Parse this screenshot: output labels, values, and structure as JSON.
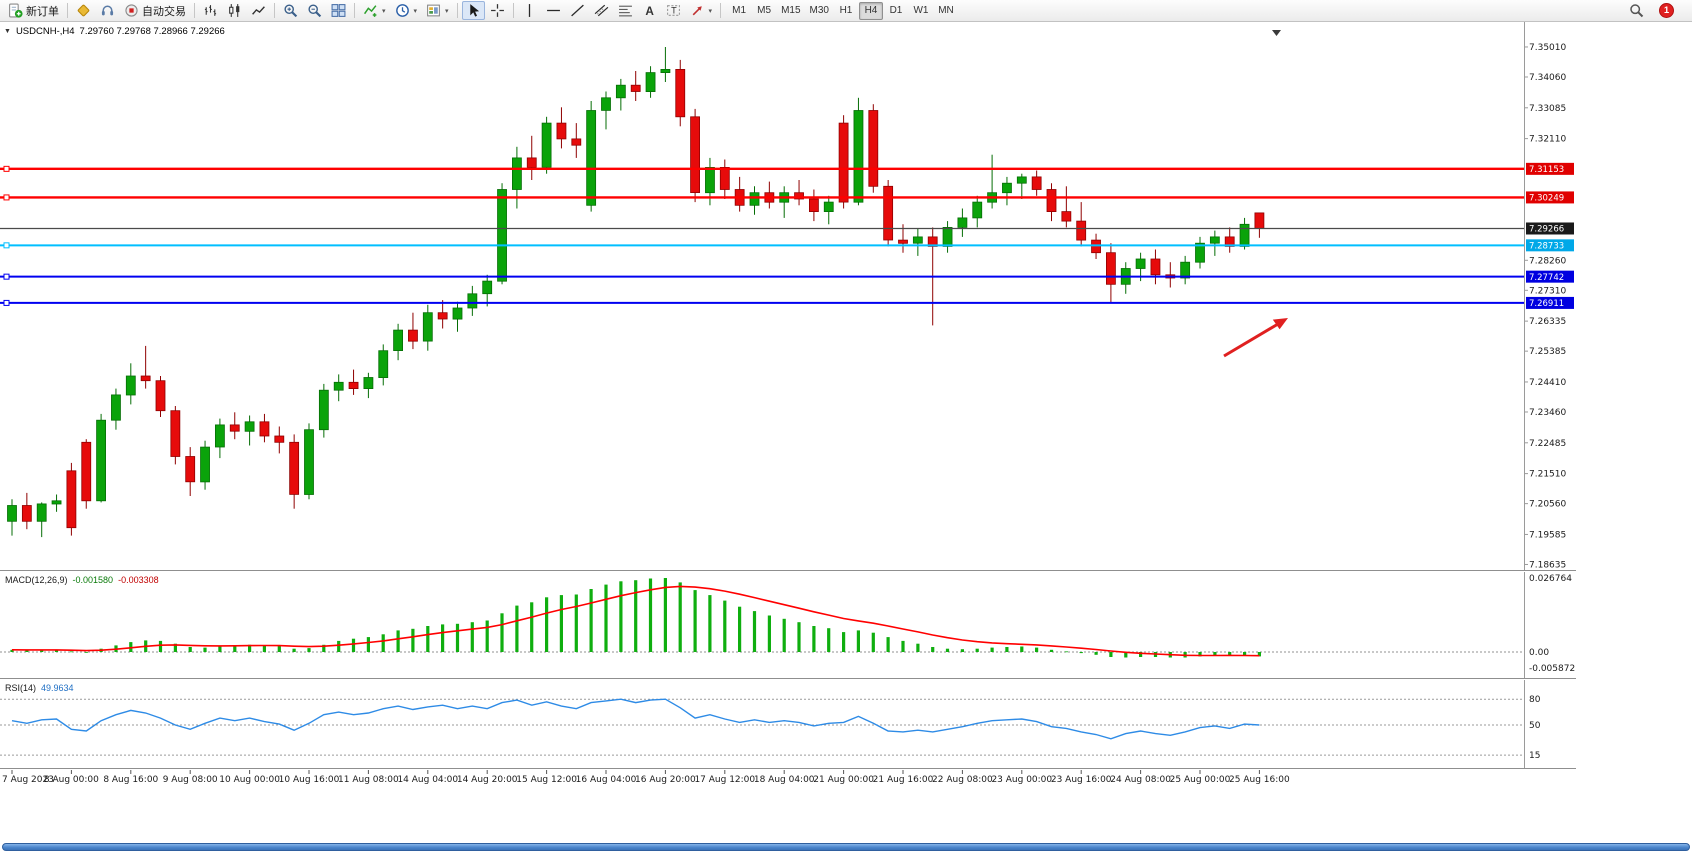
{
  "icons": {
    "caret": "▾",
    "chart_menu": "▼"
  },
  "toolbar": {
    "new_order_label": "新订单",
    "auto_trading_label": "自动交易",
    "timeframes": [
      "M1",
      "M5",
      "M15",
      "M30",
      "H1",
      "H4",
      "D1",
      "W1",
      "MN"
    ],
    "active_timeframe": "H4",
    "badge": "1"
  },
  "chart_data": {
    "type": "candlestick",
    "title": "USDCNH-,H4",
    "ohlc_display": "7.29760 7.29768 7.28966 7.29266",
    "colors": {
      "up": "#0aa30a",
      "up_stroke": "#056d05",
      "down": "#e60b0b",
      "down_stroke": "#8f0000"
    },
    "price_ticks": [
      "7.35010",
      "7.34060",
      "7.33085",
      "7.32110",
      "7.28260",
      "7.27310",
      "7.26335",
      "7.25385",
      "7.24410",
      "7.23460",
      "7.22485",
      "7.21510",
      "7.20560",
      "7.19585",
      "7.18635"
    ],
    "x_labels": [
      "7 Aug 2023",
      "8 Aug 00:00",
      "8 Aug 16:00",
      "9 Aug 08:00",
      "10 Aug 00:00",
      "10 Aug 16:00",
      "11 Aug 08:00",
      "14 Aug 04:00",
      "14 Aug 20:00",
      "15 Aug 12:00",
      "16 Aug 04:00",
      "16 Aug 20:00",
      "17 Aug 12:00",
      "18 Aug 04:00",
      "21 Aug 00:00",
      "21 Aug 16:00",
      "22 Aug 08:00",
      "23 Aug 00:00",
      "23 Aug 16:00",
      "24 Aug 08:00",
      "25 Aug 00:00",
      "25 Aug 16:00"
    ],
    "hlines": [
      {
        "price": 7.31153,
        "label": "7.31153",
        "color": "#ff0000",
        "width": 2.4,
        "tag": "#e00000",
        "handles": true
      },
      {
        "price": 7.30249,
        "label": "7.30249",
        "color": "#ff0000",
        "width": 2.4,
        "tag": "#e00000",
        "handles": true
      },
      {
        "price": 7.29266,
        "label": "7.29266",
        "color": "#4a4a4a",
        "width": 1.2,
        "tag": "#1a1a1a",
        "handles": false
      },
      {
        "price": 7.28733,
        "label": "7.28733",
        "color": "#00bfff",
        "width": 2,
        "tag": "#00a8e8",
        "handles": true
      },
      {
        "price": 7.27742,
        "label": "7.27742",
        "color": "#0000f0",
        "width": 2,
        "tag": "#0000e0",
        "handles": true
      },
      {
        "price": 7.26911,
        "label": "7.26911",
        "color": "#0000f0",
        "width": 2,
        "tag": "#0000e0",
        "handles": true
      }
    ],
    "candles": [
      [
        7.2,
        7.207,
        7.1955,
        7.205
      ],
      [
        7.205,
        7.209,
        7.1975,
        7.2
      ],
      [
        7.2,
        7.206,
        7.195,
        7.2055
      ],
      [
        7.2055,
        7.2085,
        7.203,
        7.2065
      ],
      [
        7.216,
        7.2185,
        7.1955,
        7.198
      ],
      [
        7.225,
        7.226,
        7.204,
        7.2065
      ],
      [
        7.2065,
        7.234,
        7.206,
        7.232
      ],
      [
        7.232,
        7.242,
        7.229,
        7.24
      ],
      [
        7.24,
        7.25,
        7.237,
        7.246
      ],
      [
        7.246,
        7.2555,
        7.242,
        7.2445
      ],
      [
        7.2445,
        7.246,
        7.233,
        7.235
      ],
      [
        7.235,
        7.2365,
        7.218,
        7.2205
      ],
      [
        7.2205,
        7.2235,
        7.208,
        7.2125
      ],
      [
        7.2125,
        7.2255,
        7.21,
        7.2235
      ],
      [
        7.2235,
        7.2325,
        7.22,
        7.2305
      ],
      [
        7.2305,
        7.2345,
        7.226,
        7.2285
      ],
      [
        7.2285,
        7.2335,
        7.224,
        7.2315
      ],
      [
        7.2315,
        7.234,
        7.225,
        7.227
      ],
      [
        7.227,
        7.23,
        7.2215,
        7.225
      ],
      [
        7.225,
        7.2275,
        7.204,
        7.2085
      ],
      [
        7.2085,
        7.231,
        7.207,
        7.229
      ],
      [
        7.229,
        7.2435,
        7.2265,
        7.2415
      ],
      [
        7.2415,
        7.2465,
        7.238,
        7.244
      ],
      [
        7.244,
        7.248,
        7.24,
        7.242
      ],
      [
        7.242,
        7.247,
        7.239,
        7.2455
      ],
      [
        7.2455,
        7.256,
        7.243,
        7.254
      ],
      [
        7.254,
        7.2625,
        7.251,
        7.2605
      ],
      [
        7.2605,
        7.266,
        7.2545,
        7.257
      ],
      [
        7.257,
        7.2685,
        7.254,
        7.266
      ],
      [
        7.266,
        7.27,
        7.261,
        7.264
      ],
      [
        7.264,
        7.2695,
        7.26,
        7.2675
      ],
      [
        7.2675,
        7.2745,
        7.265,
        7.272
      ],
      [
        7.272,
        7.278,
        7.268,
        7.276
      ],
      [
        7.276,
        7.307,
        7.275,
        7.305
      ],
      [
        7.305,
        7.3185,
        7.299,
        7.315
      ],
      [
        7.315,
        7.322,
        7.308,
        7.312
      ],
      [
        7.312,
        7.328,
        7.31,
        7.326
      ],
      [
        7.326,
        7.331,
        7.318,
        7.321
      ],
      [
        7.321,
        7.326,
        7.315,
        7.319
      ],
      [
        7.3,
        7.333,
        7.298,
        7.33
      ],
      [
        7.33,
        7.336,
        7.324,
        7.334
      ],
      [
        7.334,
        7.34,
        7.33,
        7.338
      ],
      [
        7.338,
        7.3425,
        7.333,
        7.336
      ],
      [
        7.336,
        7.344,
        7.334,
        7.342
      ],
      [
        7.342,
        7.3501,
        7.339,
        7.343
      ],
      [
        7.343,
        7.346,
        7.325,
        7.328
      ],
      [
        7.328,
        7.3305,
        7.301,
        7.304
      ],
      [
        7.304,
        7.315,
        7.3,
        7.312
      ],
      [
        7.312,
        7.3145,
        7.302,
        7.305
      ],
      [
        7.305,
        7.309,
        7.298,
        7.3
      ],
      [
        7.3,
        7.306,
        7.297,
        7.304
      ],
      [
        7.304,
        7.3075,
        7.299,
        7.301
      ],
      [
        7.301,
        7.306,
        7.296,
        7.304
      ],
      [
        7.304,
        7.308,
        7.3,
        7.302
      ],
      [
        7.302,
        7.305,
        7.295,
        7.298
      ],
      [
        7.298,
        7.303,
        7.294,
        7.301
      ],
      [
        7.326,
        7.3285,
        7.299,
        7.301
      ],
      [
        7.301,
        7.334,
        7.3,
        7.33
      ],
      [
        7.33,
        7.332,
        7.304,
        7.306
      ],
      [
        7.306,
        7.308,
        7.287,
        7.289
      ],
      [
        7.289,
        7.294,
        7.285,
        7.288
      ],
      [
        7.288,
        7.2925,
        7.284,
        7.29
      ],
      [
        7.29,
        7.293,
        7.262,
        7.287
      ],
      [
        7.287,
        7.295,
        7.285,
        7.293
      ],
      [
        7.293,
        7.299,
        7.29,
        7.296
      ],
      [
        7.296,
        7.303,
        7.293,
        7.301
      ],
      [
        7.301,
        7.316,
        7.299,
        7.304
      ],
      [
        7.304,
        7.309,
        7.3,
        7.307
      ],
      [
        7.307,
        7.31,
        7.302,
        7.309
      ],
      [
        7.309,
        7.311,
        7.303,
        7.305
      ],
      [
        7.305,
        7.307,
        7.295,
        7.298
      ],
      [
        7.298,
        7.306,
        7.293,
        7.295
      ],
      [
        7.295,
        7.301,
        7.287,
        7.289
      ],
      [
        7.289,
        7.291,
        7.283,
        7.285
      ],
      [
        7.285,
        7.288,
        7.269,
        7.275
      ],
      [
        7.275,
        7.282,
        7.272,
        7.28
      ],
      [
        7.28,
        7.285,
        7.276,
        7.283
      ],
      [
        7.283,
        7.286,
        7.275,
        7.278
      ],
      [
        7.278,
        7.282,
        7.274,
        7.277
      ],
      [
        7.277,
        7.284,
        7.275,
        7.282
      ],
      [
        7.282,
        7.29,
        7.28,
        7.288
      ],
      [
        7.288,
        7.292,
        7.284,
        7.29
      ],
      [
        7.29,
        7.293,
        7.285,
        7.287
      ],
      [
        7.287,
        7.296,
        7.286,
        7.294
      ],
      [
        7.2976,
        7.2977,
        7.2897,
        7.2927
      ]
    ],
    "indicators": [
      {
        "type": "bar",
        "label": "MACD(12,26,9)",
        "value_main": "-0.001580",
        "value_signal": "-0.003308",
        "colors": {
          "histogram": "#0fae0f",
          "signal": "#ff0000"
        },
        "axis_ticks": [
          "0.026764",
          "0.00",
          "-0.005872"
        ],
        "values": [
          0.0008,
          0.0006,
          0.0007,
          0.0008,
          0.0002,
          0.0,
          0.0012,
          0.0024,
          0.0036,
          0.0042,
          0.004,
          0.003,
          0.0018,
          0.0016,
          0.002,
          0.0024,
          0.0026,
          0.0025,
          0.0022,
          0.0012,
          0.0014,
          0.0026,
          0.004,
          0.0048,
          0.0054,
          0.0064,
          0.0078,
          0.0084,
          0.0094,
          0.01,
          0.0102,
          0.0108,
          0.0114,
          0.014,
          0.0168,
          0.018,
          0.0198,
          0.0206,
          0.0208,
          0.0228,
          0.0244,
          0.0256,
          0.026,
          0.0266,
          0.0268,
          0.0252,
          0.0224,
          0.0206,
          0.0186,
          0.0164,
          0.0148,
          0.0132,
          0.012,
          0.0108,
          0.0094,
          0.0086,
          0.0072,
          0.0078,
          0.007,
          0.0054,
          0.004,
          0.003,
          0.0018,
          0.0012,
          0.001,
          0.0012,
          0.0016,
          0.0018,
          0.002,
          0.0016,
          0.0008,
          0.0002,
          -0.0004,
          -0.001,
          -0.0018,
          -0.002,
          -0.0018,
          -0.0018,
          -0.002,
          -0.002,
          -0.0016,
          -0.0012,
          -0.0012,
          -0.0014,
          -0.00158
        ]
      },
      {
        "type": "line",
        "label": "RSI(14)",
        "value": "49.9634",
        "color": "#2e8be6",
        "levels": [
          80,
          50,
          15
        ],
        "values": [
          55,
          52,
          56,
          57,
          45,
          43,
          55,
          62,
          67,
          64,
          58,
          50,
          45,
          52,
          58,
          55,
          58,
          54,
          51,
          44,
          52,
          62,
          65,
          62,
          64,
          69,
          72,
          68,
          71,
          73,
          69,
          72,
          69,
          76,
          79,
          73,
          77,
          72,
          69,
          76,
          78,
          80,
          76,
          79,
          80,
          70,
          58,
          62,
          57,
          53,
          56,
          53,
          55,
          53,
          49,
          52,
          53,
          60,
          52,
          43,
          42,
          44,
          42,
          45,
          48,
          52,
          55,
          56,
          57,
          54,
          48,
          46,
          42,
          39,
          34,
          40,
          43,
          40,
          38,
          42,
          47,
          49,
          46,
          51,
          49.96
        ]
      }
    ],
    "annotation_arrow": {
      "color": "#e02020"
    }
  }
}
